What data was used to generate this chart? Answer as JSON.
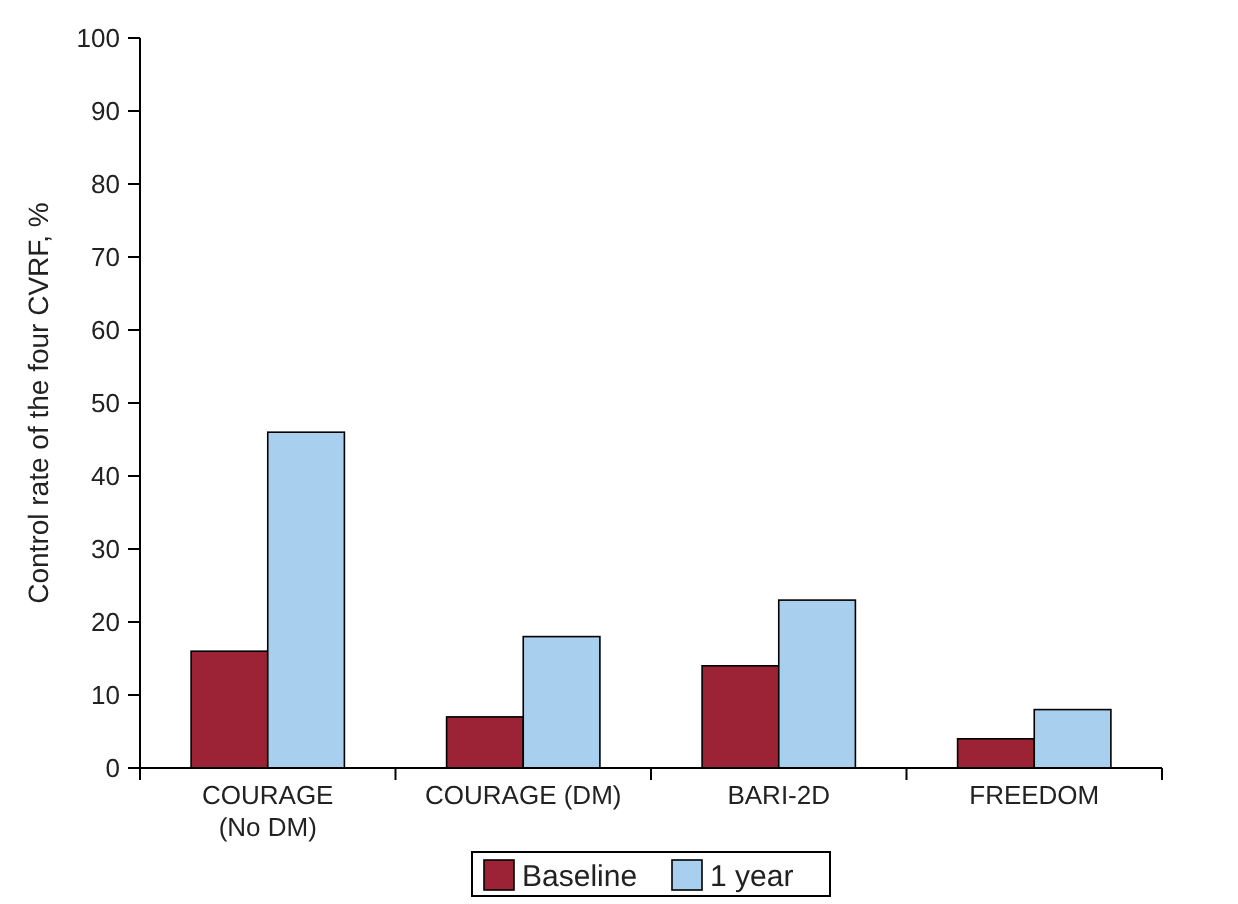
{
  "chart_data": {
    "type": "bar",
    "ylabel": "Control rate of the four CVRF, %",
    "categories": [
      "COURAGE\n(No DM)",
      "COURAGE (DM)",
      "BARI-2D",
      "FREEDOM"
    ],
    "series": [
      {
        "name": "Baseline",
        "color": "#9b2335",
        "values": [
          16,
          7,
          14,
          4
        ]
      },
      {
        "name": "1 year",
        "color": "#a9cfee",
        "values": [
          46,
          18,
          23,
          8
        ]
      }
    ],
    "ylim": [
      0,
      100
    ],
    "yticks": [
      0,
      10,
      20,
      30,
      40,
      50,
      60,
      70,
      80,
      90,
      100
    ],
    "grid": false,
    "legend": "bottom"
  }
}
